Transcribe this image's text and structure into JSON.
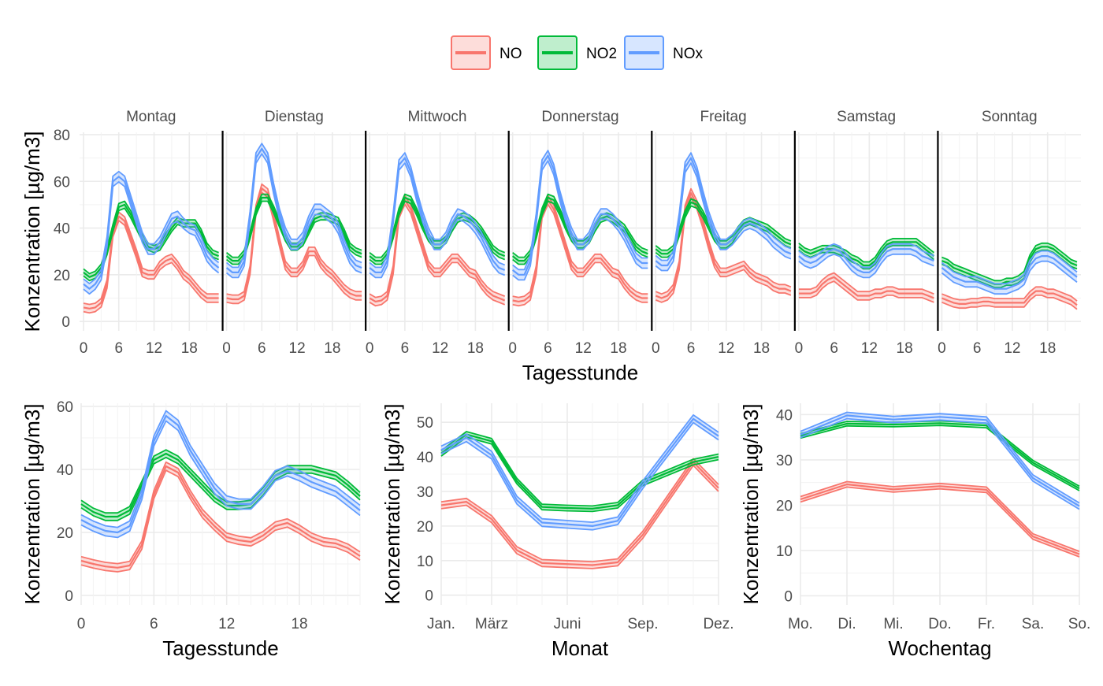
{
  "colors": {
    "NO": "#F8766D",
    "NO2": "#00BA38",
    "NOx": "#619CFF"
  },
  "legend": [
    {
      "key": "NO",
      "label": "NO"
    },
    {
      "key": "NO2",
      "label": "NO2"
    },
    {
      "key": "NOx",
      "label": "NOx"
    }
  ],
  "chart_data": [
    {
      "id": "top",
      "type": "line",
      "variant": "ribbon",
      "panels": [
        "Montag",
        "Dienstag",
        "Mittwoch",
        "Donnerstag",
        "Freitag",
        "Samstag",
        "Sonntag"
      ],
      "x_ticks": [
        "0",
        "6",
        "12",
        "18"
      ],
      "xlabel": "Tagesstunde",
      "ylabel": "Konzentration [µg/m3]",
      "ylim": [
        -4,
        81
      ],
      "yticks": [
        0,
        20,
        40,
        60,
        80
      ],
      "hours": [
        0,
        1,
        2,
        3,
        4,
        5,
        6,
        7,
        8,
        9,
        10,
        11,
        12,
        13,
        14,
        15,
        16,
        17,
        18,
        19,
        20,
        21,
        22,
        23
      ],
      "series": [
        {
          "name": "NO",
          "days": [
            [
              6,
              5.5,
              6,
              8,
              16,
              38,
              45,
              43,
              36,
              29,
              21,
              20,
              20,
              24,
              26,
              27,
              24,
              20,
              18,
              15,
              12,
              10,
              10,
              10
            ],
            [
              10,
              9.5,
              9.5,
              11,
              22,
              48,
              57,
              55,
              45,
              34,
              24,
              21,
              21,
              24,
              30,
              30,
              25,
              22,
              20,
              17,
              14,
              12,
              11,
              11
            ],
            [
              10,
              8.5,
              9,
              11,
              22,
              46,
              52,
              48,
              40,
              32,
              24,
              21,
              21,
              24,
              27,
              27,
              24,
              21,
              20,
              16,
              13,
              11,
              10,
              9
            ],
            [
              9,
              8.5,
              9,
              11,
              22,
              46,
              52,
              48,
              40,
              32,
              24,
              21,
              21,
              24,
              27,
              27,
              24,
              21,
              20,
              16,
              13,
              11,
              10,
              10
            ],
            [
              11,
              10,
              11,
              14,
              24,
              48,
              55,
              50,
              42,
              33,
              25,
              21,
              21,
              22,
              23,
              24,
              21,
              19,
              18,
              17,
              15,
              14,
              14,
              13
            ],
            [
              12,
              12,
              12,
              13,
              16,
              18,
              19,
              17,
              15,
              13,
              11,
              11,
              11,
              12,
              12,
              13,
              13,
              12,
              12,
              12,
              12,
              12,
              11,
              10
            ],
            [
              10,
              9,
              8,
              7.5,
              7.5,
              8,
              8,
              8.5,
              8.5,
              8,
              8,
              8,
              8,
              8,
              8,
              11,
              13,
              13,
              12,
              12,
              11,
              10,
              9,
              7
            ]
          ],
          "half_width": 1.8
        },
        {
          "name": "NO2",
          "days": [
            [
              21,
              19,
              20,
              23,
              30,
              40,
              49,
              50,
              46,
              41,
              36,
              32,
              31,
              32,
              36,
              40,
              43,
              42,
              42,
              42,
              38,
              32,
              29,
              28
            ],
            [
              28,
              26,
              26,
              29,
              37,
              47,
              53,
              53,
              48,
              42,
              36,
              32,
              32,
              34,
              39,
              44,
              45,
              45,
              44,
              43,
              38,
              32,
              30,
              29
            ],
            [
              28,
              26,
              26,
              29,
              37,
              47,
              53,
              52,
              47,
              41,
              36,
              33,
              33,
              35,
              40,
              44,
              45,
              44,
              42,
              39,
              35,
              31,
              29,
              28
            ],
            [
              28,
              26,
              26,
              29,
              37,
              47,
              53,
              52,
              47,
              41,
              36,
              33,
              33,
              35,
              40,
              44,
              45,
              44,
              42,
              40,
              36,
              32,
              30,
              29
            ],
            [
              31,
              29,
              29,
              31,
              38,
              46,
              51,
              50,
              46,
              41,
              36,
              33,
              33,
              35,
              39,
              42,
              43,
              42,
              41,
              40,
              38,
              36,
              34,
              33
            ],
            [
              32,
              30,
              29,
              30,
              31,
              31,
              31,
              30,
              29,
              27,
              26,
              24,
              24,
              26,
              30,
              33,
              34,
              34,
              34,
              34,
              34,
              32,
              30,
              28
            ],
            [
              26,
              25,
              23,
              22,
              21,
              20,
              19,
              18,
              17,
              16,
              16,
              17,
              17,
              18,
              20,
              27,
              31,
              32,
              32,
              31,
              29,
              27,
              25,
              24
            ]
          ],
          "half_width": 1.5
        },
        {
          "name": "NOx",
          "days": [
            [
              16,
              14,
              16,
              20,
              34,
              60,
              62,
              60,
              52,
              44,
              36,
              31,
              31,
              34,
              39,
              44,
              45,
              42,
              40,
              39,
              34,
              28,
              25,
              23
            ],
            [
              23,
              21,
              21,
              26,
              45,
              70,
              74,
              70,
              57,
              46,
              38,
              33,
              33,
              36,
              43,
              48,
              48,
              46,
              44,
              40,
              33,
              27,
              24,
              23
            ],
            [
              23,
              21,
              21,
              26,
              44,
              67,
              70,
              64,
              54,
              45,
              38,
              33,
              33,
              36,
              42,
              46,
              45,
              43,
              40,
              36,
              31,
              26,
              23,
              22
            ],
            [
              22,
              20,
              20,
              26,
              44,
              67,
              71,
              65,
              54,
              45,
              38,
              33,
              33,
              36,
              42,
              46,
              46,
              44,
              41,
              37,
              32,
              27,
              25,
              25
            ],
            [
              26,
              24,
              24,
              28,
              44,
              66,
              70,
              64,
              54,
              45,
              38,
              33,
              33,
              35,
              38,
              41,
              42,
              41,
              39,
              37,
              34,
              32,
              30,
              29
            ],
            [
              28,
              26,
              25,
              26,
              28,
              30,
              31,
              30,
              27,
              24,
              22,
              21,
              21,
              23,
              27,
              30,
              31,
              31,
              31,
              31,
              30,
              28,
              27,
              26
            ],
            [
              23,
              21,
              19,
              18,
              17,
              17,
              17,
              16,
              15,
              14,
              14,
              14,
              15,
              16,
              18,
              24,
              27,
              28,
              28,
              27,
              25,
              23,
              21,
              19
            ]
          ],
          "half_width": 2.2
        }
      ]
    },
    {
      "id": "hour",
      "type": "line",
      "variant": "ribbon",
      "x": [
        0,
        1,
        2,
        3,
        4,
        5,
        6,
        7,
        8,
        9,
        10,
        11,
        12,
        13,
        14,
        15,
        16,
        17,
        18,
        19,
        20,
        21,
        22,
        23
      ],
      "xlim": [
        0,
        23
      ],
      "x_ticks": [
        {
          "v": 0,
          "label": "0"
        },
        {
          "v": 6,
          "label": "6"
        },
        {
          "v": 12,
          "label": "12"
        },
        {
          "v": 18,
          "label": "18"
        }
      ],
      "xlabel": "Tagesstunde",
      "ylabel": "Konzentration [µg/m3]",
      "ylim": [
        -3,
        61
      ],
      "yticks": [
        0,
        20,
        40,
        60
      ],
      "series": [
        {
          "name": "NO",
          "values": [
            11,
            10,
            9.2,
            8.8,
            9.5,
            16,
            32,
            41,
            39,
            32,
            26,
            22,
            18.5,
            17.5,
            17,
            19,
            22,
            23,
            21,
            18.5,
            17,
            16.5,
            15,
            12.5
          ],
          "half_width": 1.3
        },
        {
          "name": "NO2",
          "values": [
            29,
            26.5,
            25,
            25,
            27,
            35,
            43,
            45,
            43,
            39,
            35,
            31,
            28.5,
            28.5,
            29,
            33,
            38,
            40,
            40,
            40,
            39,
            38,
            35,
            31.5
          ],
          "half_width": 1.2
        },
        {
          "name": "NOx",
          "values": [
            24,
            22,
            20.5,
            20,
            22,
            32,
            49,
            57,
            54,
            46,
            40,
            34,
            30,
            29,
            29,
            33,
            38,
            39.5,
            38,
            36,
            34.5,
            33,
            30,
            27
          ],
          "half_width": 1.6
        }
      ]
    },
    {
      "id": "month",
      "type": "line",
      "variant": "ribbon",
      "x": [
        1,
        2,
        3,
        4,
        5,
        6,
        7,
        8,
        9,
        10,
        11,
        12
      ],
      "xlim": [
        1,
        12
      ],
      "x_ticks": [
        {
          "v": 1,
          "label": "Jan."
        },
        {
          "v": 3,
          "label": "März"
        },
        {
          "v": 6,
          "label": "Juni"
        },
        {
          "v": 9,
          "label": "Sep."
        },
        {
          "v": 12,
          "label": "Dez."
        }
      ],
      "xlabel": "Monat",
      "ylabel": "Konzentration [µg/m3]",
      "ylim": [
        -2.8,
        55.5
      ],
      "yticks": [
        0,
        10,
        20,
        30,
        40,
        50
      ],
      "series": [
        {
          "name": "NO",
          "values": [
            26,
            27,
            22,
            13,
            9.3,
            9,
            8.7,
            9.5,
            17.5,
            28,
            38.5,
            31
          ],
          "half_width": 1.0
        },
        {
          "name": "NO2",
          "values": [
            41,
            46.5,
            44.5,
            33,
            25.5,
            25.2,
            25,
            26,
            32.5,
            35.5,
            38.5,
            40
          ],
          "half_width": 0.8
        },
        {
          "name": "NOx",
          "values": [
            42,
            45.5,
            40.5,
            27.5,
            21,
            20.5,
            20,
            21.5,
            32,
            41.5,
            51,
            46
          ],
          "half_width": 1.1
        }
      ]
    },
    {
      "id": "weekday",
      "type": "line",
      "variant": "ribbon",
      "x": [
        1,
        2,
        3,
        4,
        5,
        6,
        7
      ],
      "xlim": [
        1,
        7
      ],
      "x_ticks": [
        {
          "v": 1,
          "label": "Mo."
        },
        {
          "v": 2,
          "label": "Di."
        },
        {
          "v": 3,
          "label": "Mi."
        },
        {
          "v": 4,
          "label": "Do."
        },
        {
          "v": 5,
          "label": "Fr."
        },
        {
          "v": 6,
          "label": "Sa."
        },
        {
          "v": 7,
          "label": "So."
        }
      ],
      "xlabel": "Wochentag",
      "ylabel": "Konzentration [µg/m3]",
      "ylim": [
        -2,
        42.5
      ],
      "yticks": [
        0,
        10,
        20,
        30,
        40
      ],
      "series": [
        {
          "name": "NO",
          "values": [
            21.3,
            24.6,
            23.5,
            24.2,
            23.4,
            13.1,
            9.2
          ],
          "half_width": 0.6
        },
        {
          "name": "NO2",
          "values": [
            35.3,
            38,
            37.8,
            38.1,
            37.6,
            29.4,
            23.7
          ],
          "half_width": 0.5
        },
        {
          "name": "NOx",
          "values": [
            35.6,
            39.8,
            38.9,
            39.5,
            38.8,
            26,
            19.8
          ],
          "half_width": 0.7
        }
      ]
    }
  ]
}
